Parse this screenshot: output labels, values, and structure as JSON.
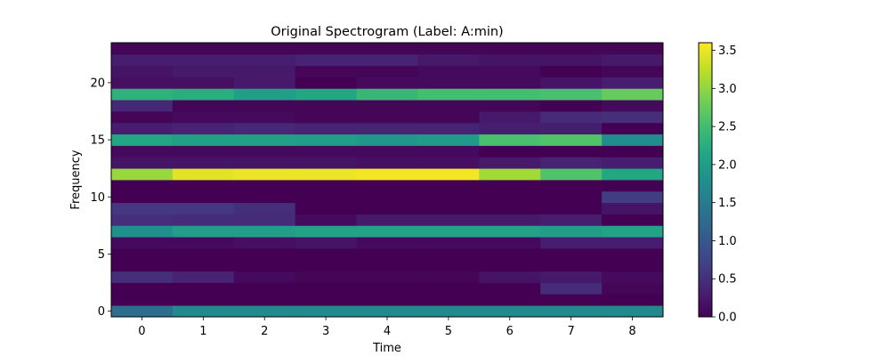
{
  "chart_data": {
    "type": "heatmap",
    "title": "Original Spectrogram (Label: A:min)",
    "xlabel": "Time",
    "ylabel": "Frequency",
    "x": [
      0,
      1,
      2,
      3,
      4,
      5,
      6,
      7,
      8
    ],
    "y": [
      0,
      1,
      2,
      3,
      4,
      5,
      6,
      7,
      8,
      9,
      10,
      11,
      12,
      13,
      14,
      15,
      16,
      17,
      18,
      19,
      20,
      21,
      22,
      23
    ],
    "xlim": [
      -0.5,
      8.5
    ],
    "ylim": [
      -0.5,
      23.5
    ],
    "xticks": [
      0,
      1,
      2,
      3,
      4,
      5,
      6,
      7,
      8
    ],
    "yticks": [
      0,
      5,
      10,
      15,
      20
    ],
    "colormap": "viridis",
    "vmin": 0.0,
    "vmax": 3.6,
    "colorbar_ticks": [
      "0.0",
      "0.5",
      "1.0",
      "1.5",
      "2.0",
      "2.5",
      "3.0",
      "3.5"
    ],
    "values": [
      [
        1.3,
        1.7,
        1.7,
        1.7,
        1.7,
        1.7,
        1.7,
        1.7,
        1.7
      ],
      [
        0.0,
        0.0,
        0.0,
        0.0,
        0.0,
        0.0,
        0.0,
        0.0,
        0.0
      ],
      [
        0.0,
        0.0,
        0.0,
        0.0,
        0.0,
        0.0,
        0.0,
        0.45,
        0.05
      ],
      [
        0.5,
        0.35,
        0.1,
        0.05,
        0.05,
        0.05,
        0.2,
        0.25,
        0.1
      ],
      [
        0.0,
        0.0,
        0.0,
        0.0,
        0.0,
        0.0,
        0.0,
        0.0,
        0.0
      ],
      [
        0.0,
        0.0,
        0.0,
        0.0,
        0.0,
        0.0,
        0.0,
        0.0,
        0.0
      ],
      [
        0.1,
        0.1,
        0.15,
        0.2,
        0.1,
        0.1,
        0.1,
        0.3,
        0.3
      ],
      [
        1.8,
        2.0,
        2.0,
        2.1,
        2.1,
        2.1,
        2.1,
        2.0,
        2.1
      ],
      [
        0.5,
        0.45,
        0.45,
        0.1,
        0.25,
        0.25,
        0.25,
        0.3,
        0.0
      ],
      [
        0.6,
        0.6,
        0.5,
        0.0,
        0.0,
        0.0,
        0.0,
        0.0,
        0.2
      ],
      [
        0.0,
        0.0,
        0.0,
        0.0,
        0.0,
        0.0,
        0.0,
        0.0,
        0.65
      ],
      [
        0.0,
        0.0,
        0.0,
        0.0,
        0.0,
        0.0,
        0.0,
        0.0,
        0.0
      ],
      [
        3.05,
        3.45,
        3.5,
        3.5,
        3.55,
        3.55,
        3.1,
        2.6,
        2.15
      ],
      [
        0.2,
        0.2,
        0.2,
        0.2,
        0.15,
        0.15,
        0.25,
        0.35,
        0.3
      ],
      [
        0.1,
        0.1,
        0.1,
        0.1,
        0.1,
        0.1,
        0.0,
        0.0,
        0.0
      ],
      [
        2.15,
        2.05,
        2.05,
        2.0,
        1.9,
        1.95,
        2.55,
        2.6,
        1.75
      ],
      [
        0.3,
        0.35,
        0.4,
        0.35,
        0.35,
        0.35,
        0.3,
        0.3,
        0.0
      ],
      [
        0.05,
        0.1,
        0.1,
        0.05,
        0.05,
        0.05,
        0.25,
        0.45,
        0.5
      ],
      [
        0.4,
        0.05,
        0.05,
        0.05,
        0.05,
        0.05,
        0.05,
        0.0,
        0.1
      ],
      [
        2.3,
        2.25,
        2.0,
        2.15,
        2.4,
        2.5,
        2.5,
        2.55,
        2.75
      ],
      [
        0.15,
        0.15,
        0.25,
        0.0,
        0.1,
        0.1,
        0.1,
        0.2,
        0.3
      ],
      [
        0.2,
        0.25,
        0.25,
        0.05,
        0.05,
        0.1,
        0.1,
        0.0,
        0.05
      ],
      [
        0.3,
        0.3,
        0.3,
        0.35,
        0.35,
        0.25,
        0.2,
        0.2,
        0.25
      ],
      [
        0.05,
        0.05,
        0.05,
        0.05,
        0.05,
        0.05,
        0.05,
        0.05,
        0.05
      ]
    ]
  }
}
